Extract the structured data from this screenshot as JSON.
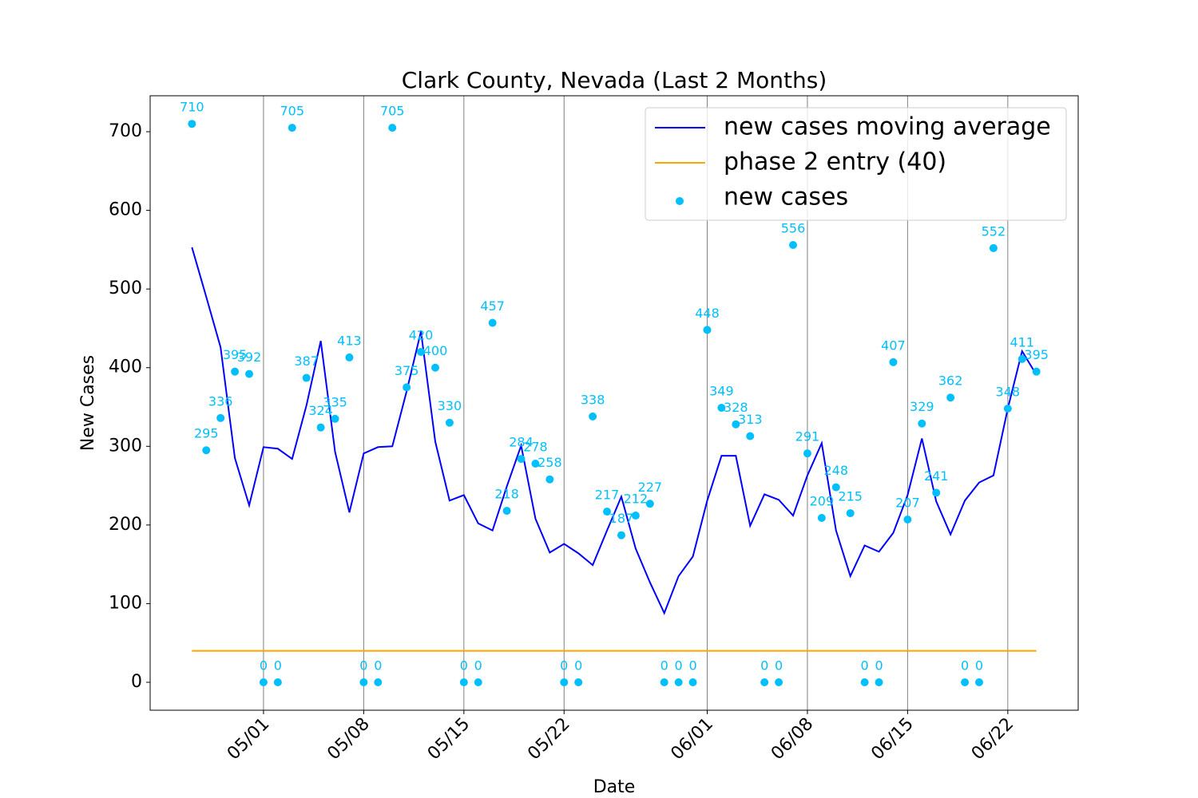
{
  "chart_data": {
    "type": "line",
    "title": "Clark County, Nevada (Last 2 Months)",
    "xlabel": "Date",
    "ylabel": "New Cases",
    "x": [
      "04/26",
      "04/27",
      "04/28",
      "04/29",
      "04/30",
      "05/01",
      "05/02",
      "05/03",
      "05/04",
      "05/05",
      "05/06",
      "05/07",
      "05/08",
      "05/09",
      "05/10",
      "05/11",
      "05/12",
      "05/13",
      "05/14",
      "05/15",
      "05/16",
      "05/17",
      "05/18",
      "05/19",
      "05/20",
      "05/21",
      "05/22",
      "05/23",
      "05/24",
      "05/25",
      "05/26",
      "05/27",
      "05/28",
      "05/29",
      "05/30",
      "05/31",
      "06/01",
      "06/02",
      "06/03",
      "06/04",
      "06/05",
      "06/06",
      "06/07",
      "06/08",
      "06/09",
      "06/10",
      "06/11",
      "06/12",
      "06/13",
      "06/14",
      "06/15",
      "06/16",
      "06/17",
      "06/18",
      "06/19",
      "06/20",
      "06/21",
      "06/22",
      "06/23",
      "06/24"
    ],
    "xticks": [
      "05/01",
      "05/08",
      "05/15",
      "05/22",
      "06/01",
      "06/08",
      "06/15",
      "06/22"
    ],
    "ylim": [
      -35.5,
      745.7
    ],
    "yticks": [
      0,
      100,
      200,
      300,
      400,
      500,
      600,
      700
    ],
    "grid": "x",
    "legend": "upper right",
    "series": [
      {
        "name": "new cases moving average",
        "type": "line",
        "color": "#0000ff",
        "values": [
          553,
          490,
          426,
          285,
          225,
          299,
          297,
          284,
          352,
          434,
          293,
          216,
          291,
          299,
          300,
          370,
          446,
          306,
          231,
          238,
          202,
          193,
          249,
          301,
          208,
          165,
          176,
          164,
          149,
          193,
          236,
          170,
          127,
          88,
          135,
          160,
          231,
          288,
          288,
          199,
          239,
          232,
          212,
          263,
          304,
          193,
          135,
          174,
          166,
          190,
          238,
          310,
          230,
          188,
          231,
          254,
          263,
          348,
          421,
          391
        ]
      },
      {
        "name": "phase 2 entry (40)",
        "type": "line",
        "color": "#ffa500",
        "values": [
          40,
          40,
          40,
          40,
          40,
          40,
          40,
          40,
          40,
          40,
          40,
          40,
          40,
          40,
          40,
          40,
          40,
          40,
          40,
          40,
          40,
          40,
          40,
          40,
          40,
          40,
          40,
          40,
          40,
          40,
          40,
          40,
          40,
          40,
          40,
          40,
          40,
          40,
          40,
          40,
          40,
          40,
          40,
          40,
          40,
          40,
          40,
          40,
          40,
          40,
          40,
          40,
          40,
          40,
          40,
          40,
          40,
          40,
          40,
          40
        ]
      },
      {
        "name": "new cases",
        "type": "scatter",
        "color": "#00bfff",
        "values": [
          710,
          295,
          336,
          395,
          392,
          0,
          0,
          705,
          387,
          324,
          335,
          413,
          0,
          0,
          705,
          375,
          420,
          400,
          330,
          0,
          0,
          457,
          218,
          284,
          278,
          258,
          0,
          0,
          338,
          217,
          187,
          212,
          227,
          0,
          0,
          0,
          448,
          349,
          328,
          313,
          0,
          0,
          556,
          291,
          209,
          248,
          215,
          0,
          0,
          407,
          207,
          329,
          241,
          362,
          0,
          0,
          552,
          348,
          411,
          395
        ]
      }
    ]
  }
}
